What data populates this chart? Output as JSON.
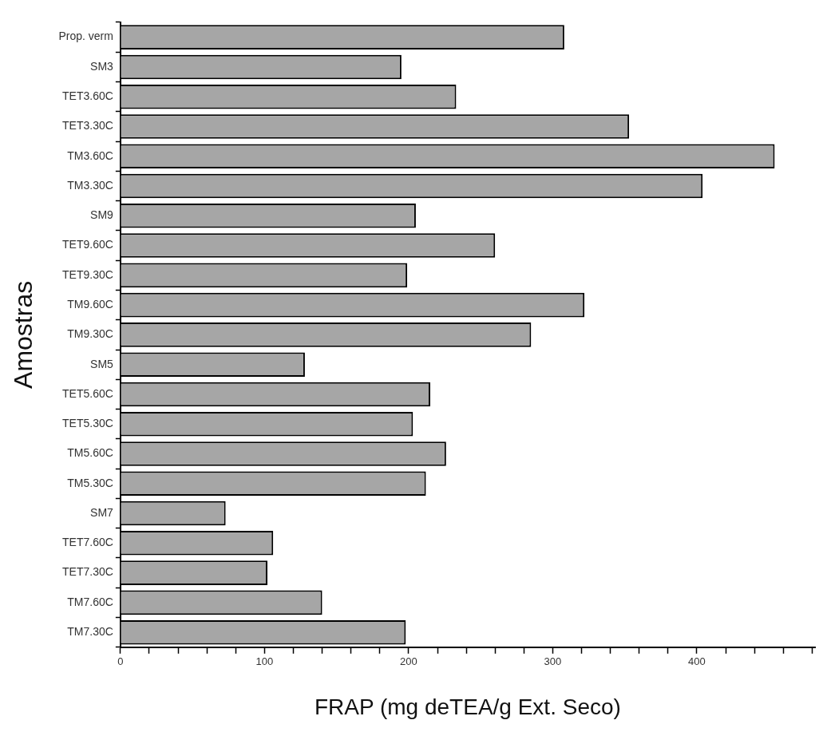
{
  "chart_data": {
    "type": "bar",
    "orientation": "horizontal",
    "xlabel": "FRAP (mg deTEA/g Ext. Seco)",
    "ylabel": "Amostras",
    "categories": [
      "Prop. verm",
      "SM3",
      "TET3.60C",
      "TET3.30C",
      "TM3.60C",
      "TM3.30C",
      "SM9",
      "TET9.60C",
      "TET9.30C",
      "TM9.60C",
      "TM9.30C",
      "SM5",
      "TET5.60C",
      "TET5.30C",
      "TM5.60C",
      "TM5.30C",
      "SM7",
      "TET7.60C",
      "TET7.30C",
      "TM7.60C",
      "TM7.30C"
    ],
    "values": [
      308,
      195,
      233,
      353,
      454,
      404,
      205,
      260,
      199,
      322,
      285,
      128,
      215,
      203,
      226,
      212,
      73,
      106,
      102,
      140,
      198
    ],
    "color": "#a6a6a6",
    "xlim": [
      0,
      482
    ],
    "xticks": [
      0,
      {
        "value": 20,
        "label": null
      },
      {
        "value": 40,
        "label": null
      },
      {
        "value": 60,
        "label": null
      },
      {
        "value": 80,
        "label": null
      },
      100,
      {
        "value": 120,
        "label": null
      },
      {
        "value": 140,
        "label": null
      },
      {
        "value": 160,
        "label": null
      },
      {
        "value": 180,
        "label": null
      },
      200,
      {
        "value": 220,
        "label": null
      },
      {
        "value": 240,
        "label": null
      },
      {
        "value": 260,
        "label": null
      },
      {
        "value": 280,
        "label": null
      },
      300,
      {
        "value": 320,
        "label": null
      },
      {
        "value": 340,
        "label": null
      },
      {
        "value": 360,
        "label": null
      },
      {
        "value": 380,
        "label": null
      },
      400,
      {
        "value": 420,
        "label": null
      },
      {
        "value": 440,
        "label": null
      },
      {
        "value": 460,
        "label": null
      },
      {
        "value": 480,
        "label": null
      }
    ],
    "grid": false,
    "legend": false
  }
}
